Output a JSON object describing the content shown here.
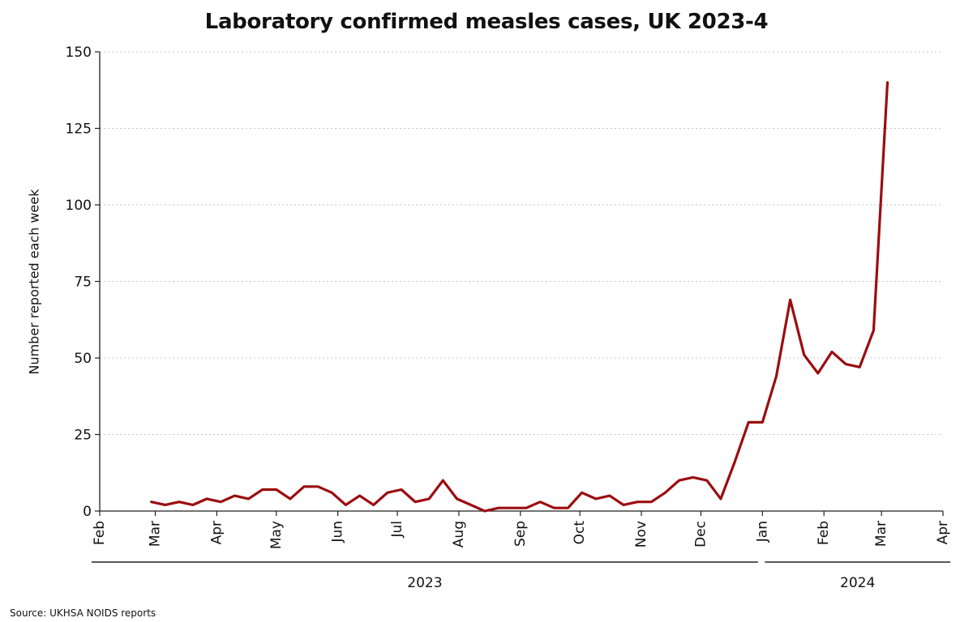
{
  "chart_data": {
    "type": "line",
    "title": "Laboratory confirmed measles cases, UK 2023-4",
    "ylabel": "Number reported each week",
    "xlabel": "",
    "ylim": [
      0,
      150
    ],
    "yticks": [
      0,
      25,
      50,
      75,
      100,
      125,
      150
    ],
    "grid": "horizontal-dotted",
    "xlim": [
      "2023-02-01",
      "2024-04-01"
    ],
    "month_ticks": [
      {
        "label": "Feb",
        "date": "2023-02-01"
      },
      {
        "label": "Mar",
        "date": "2023-03-01"
      },
      {
        "label": "Apr",
        "date": "2023-04-01"
      },
      {
        "label": "May",
        "date": "2023-05-01"
      },
      {
        "label": "Jun",
        "date": "2023-06-01"
      },
      {
        "label": "Jul",
        "date": "2023-07-01"
      },
      {
        "label": "Aug",
        "date": "2023-08-01"
      },
      {
        "label": "Sep",
        "date": "2023-09-01"
      },
      {
        "label": "Oct",
        "date": "2023-10-01"
      },
      {
        "label": "Nov",
        "date": "2023-11-01"
      },
      {
        "label": "Dec",
        "date": "2023-12-01"
      },
      {
        "label": "Jan",
        "date": "2024-01-01"
      },
      {
        "label": "Feb",
        "date": "2024-02-01"
      },
      {
        "label": "Mar",
        "date": "2024-03-01"
      },
      {
        "label": "Apr",
        "date": "2024-04-01"
      }
    ],
    "year_groups": [
      {
        "label": "2023",
        "start": "2023-02-01",
        "end": "2023-12-31"
      },
      {
        "label": "2024",
        "start": "2024-01-01",
        "end": "2024-04-01"
      }
    ],
    "series": [
      {
        "color": "#9b0d10",
        "points": [
          [
            "2023-02-27",
            3
          ],
          [
            "2023-03-06",
            2
          ],
          [
            "2023-03-13",
            3
          ],
          [
            "2023-03-20",
            2
          ],
          [
            "2023-03-27",
            4
          ],
          [
            "2023-04-03",
            3
          ],
          [
            "2023-04-10",
            5
          ],
          [
            "2023-04-17",
            4
          ],
          [
            "2023-04-24",
            7
          ],
          [
            "2023-05-01",
            7
          ],
          [
            "2023-05-08",
            4
          ],
          [
            "2023-05-15",
            8
          ],
          [
            "2023-05-22",
            8
          ],
          [
            "2023-05-29",
            6
          ],
          [
            "2023-06-05",
            2
          ],
          [
            "2023-06-12",
            5
          ],
          [
            "2023-06-19",
            2
          ],
          [
            "2023-06-26",
            6
          ],
          [
            "2023-07-03",
            7
          ],
          [
            "2023-07-10",
            3
          ],
          [
            "2023-07-17",
            4
          ],
          [
            "2023-07-24",
            10
          ],
          [
            "2023-07-31",
            4
          ],
          [
            "2023-08-07",
            2
          ],
          [
            "2023-08-14",
            0
          ],
          [
            "2023-08-21",
            1
          ],
          [
            "2023-08-28",
            1
          ],
          [
            "2023-09-04",
            1
          ],
          [
            "2023-09-11",
            3
          ],
          [
            "2023-09-18",
            1
          ],
          [
            "2023-09-25",
            1
          ],
          [
            "2023-10-02",
            6
          ],
          [
            "2023-10-09",
            4
          ],
          [
            "2023-10-16",
            5
          ],
          [
            "2023-10-23",
            2
          ],
          [
            "2023-10-30",
            3
          ],
          [
            "2023-11-06",
            3
          ],
          [
            "2023-11-13",
            6
          ],
          [
            "2023-11-20",
            10
          ],
          [
            "2023-11-27",
            11
          ],
          [
            "2023-12-04",
            10
          ],
          [
            "2023-12-11",
            4
          ],
          [
            "2023-12-18",
            16
          ],
          [
            "2023-12-25",
            29
          ],
          [
            "2024-01-01",
            29
          ],
          [
            "2024-01-08",
            44
          ],
          [
            "2024-01-15",
            69
          ],
          [
            "2024-01-22",
            51
          ],
          [
            "2024-01-29",
            45
          ],
          [
            "2024-02-05",
            52
          ],
          [
            "2024-02-12",
            48
          ],
          [
            "2024-02-19",
            47
          ],
          [
            "2024-02-26",
            59
          ],
          [
            "2024-03-04",
            140
          ]
        ]
      }
    ],
    "source": "Source: UKHSA NOIDS reports"
  }
}
